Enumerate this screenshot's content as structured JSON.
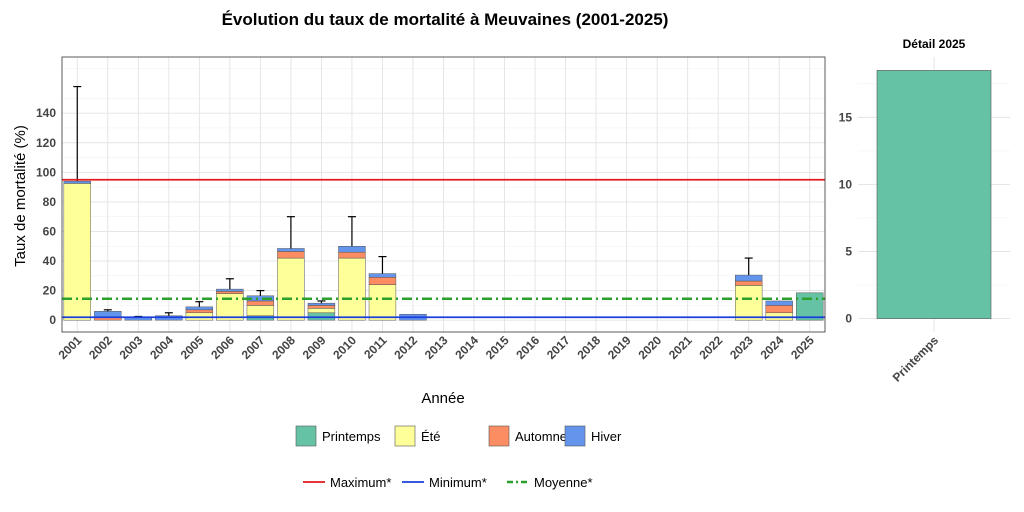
{
  "chart_data": [
    {
      "type": "bar",
      "stacked": true,
      "title": "Évolution du taux de mortalité à Meuvaines (2001-2025)",
      "xlabel": "Année",
      "ylabel": "Taux de mortalité (%)",
      "ylim": [
        -8,
        178
      ],
      "yticks": [
        0,
        20,
        40,
        60,
        80,
        100,
        120,
        140
      ],
      "grid": true,
      "categories": [
        "2001",
        "2002",
        "2003",
        "2004",
        "2005",
        "2006",
        "2007",
        "2008",
        "2009",
        "2010",
        "2011",
        "2012",
        "2013",
        "2014",
        "2015",
        "2016",
        "2017",
        "2018",
        "2019",
        "2020",
        "2021",
        "2022",
        "2023",
        "2024",
        "2025"
      ],
      "series": [
        {
          "name": "Printemps",
          "color": "#66c2a5",
          "values": [
            0,
            0,
            0,
            0,
            0,
            0,
            3,
            0,
            5,
            0,
            0,
            0,
            0,
            0,
            0,
            0,
            0,
            0,
            0,
            0,
            0,
            0,
            0,
            0,
            18.5
          ]
        },
        {
          "name": "Été",
          "color": "#ffff99",
          "values": [
            92.5,
            0,
            0,
            0,
            5,
            18,
            7,
            42,
            3,
            42,
            24,
            0,
            0,
            0,
            0,
            0,
            0,
            0,
            0,
            0,
            0,
            0,
            23.5,
            5,
            0
          ]
        },
        {
          "name": "Automne",
          "color": "#fc8d62",
          "values": [
            0,
            2,
            0,
            0,
            2,
            1.5,
            3,
            4.5,
            2,
            4,
            5,
            0,
            0,
            0,
            0,
            0,
            0,
            0,
            0,
            0,
            0,
            0,
            3,
            5,
            0
          ]
        },
        {
          "name": "Hiver",
          "color": "#6495ed",
          "values": [
            1.5,
            4,
            2,
            3,
            2,
            1.5,
            3.5,
            2,
            1.5,
            4,
            2.5,
            4,
            0,
            0,
            0,
            0,
            0,
            0,
            0,
            0,
            0,
            0,
            4,
            3,
            0
          ]
        }
      ],
      "error_bar_top": [
        158,
        7,
        2.5,
        5,
        12.5,
        28,
        20,
        70,
        13,
        70,
        43,
        4,
        0,
        0,
        0,
        0,
        0,
        0,
        0,
        0,
        0,
        0,
        42,
        13,
        18.5
      ],
      "reference_lines": [
        {
          "name": "Maximum*",
          "value": 95,
          "color": "#e41a1c",
          "style": "solid"
        },
        {
          "name": "Minimum*",
          "value": 2,
          "color": "#1a3fdc",
          "style": "solid"
        },
        {
          "name": "Moyenne*",
          "value": 14.5,
          "color": "#2ca02c",
          "style": "dashdot"
        }
      ],
      "legend_position": "bottom"
    },
    {
      "type": "bar",
      "title": "Détail 2025",
      "categories": [
        "Printemps"
      ],
      "values": [
        18.5
      ],
      "color": "#66c2a5",
      "ylim": [
        -1.0,
        19.5
      ],
      "yticks": [
        0,
        5,
        10,
        15
      ],
      "grid": true
    }
  ]
}
